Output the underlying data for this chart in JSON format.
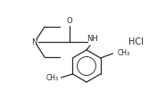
{
  "bg_color": "#ffffff",
  "line_color": "#2a2a2a",
  "line_width": 0.9,
  "text_color": "#2a2a2a",
  "font_size": 6.0,
  "hcl_font_size": 7.0,
  "fig_width": 1.76,
  "fig_height": 1.02,
  "dpi": 100,
  "xlim": [
    0,
    176
  ],
  "ylim": [
    0,
    102
  ]
}
